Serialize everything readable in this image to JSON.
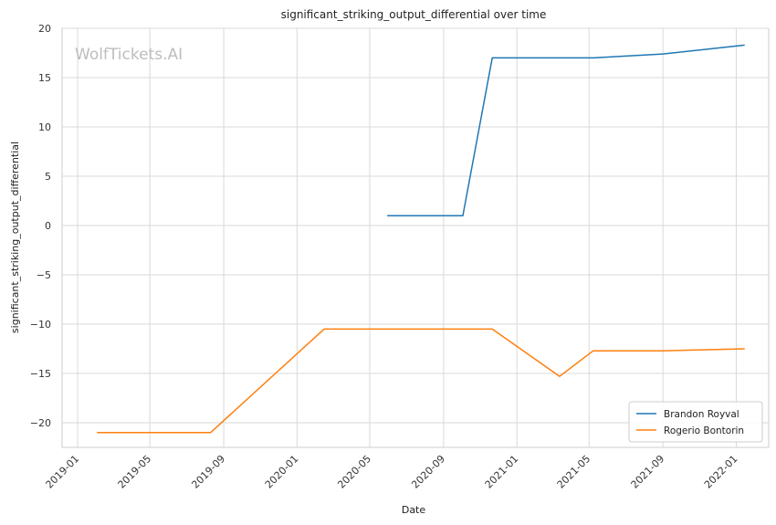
{
  "chart_data": {
    "type": "line",
    "title": "significant_striking_output_differential over time",
    "xlabel": "Date",
    "ylabel": "significant_striking_output_differential",
    "watermark": "WolfTickets.AI",
    "xlim": [
      "2018-12-06",
      "2022-02-24"
    ],
    "ylim": [
      -22.5,
      20
    ],
    "x_ticks": [
      "2019-01-01",
      "2019-05-01",
      "2019-09-01",
      "2020-01-01",
      "2020-05-01",
      "2020-09-01",
      "2021-01-01",
      "2021-05-01",
      "2021-09-01",
      "2022-01-01"
    ],
    "x_tick_labels": [
      "2019-01",
      "2019-05",
      "2019-09",
      "2020-01",
      "2020-05",
      "2020-09",
      "2021-01",
      "2021-05",
      "2021-09",
      "2022-01"
    ],
    "y_ticks": [
      20,
      15,
      10,
      5,
      0,
      -5,
      -10,
      -15,
      -20
    ],
    "y_tick_labels": [
      "20",
      "15",
      "10",
      "5",
      "0",
      "−5",
      "−10",
      "−15",
      "−20"
    ],
    "grid": true,
    "legend_position": "bottom-right",
    "series": [
      {
        "name": "Brandon Royval",
        "color": "#1f77b4",
        "x": [
          "2020-05-30",
          "2020-10-03",
          "2020-11-21",
          "2021-05-08",
          "2021-09-01",
          "2022-01-15"
        ],
        "y": [
          1.0,
          1.0,
          17.0,
          17.0,
          17.4,
          18.3
        ]
      },
      {
        "name": "Rogerio Bontorin",
        "color": "#ff7f0e",
        "x": [
          "2019-02-02",
          "2019-08-10",
          "2020-02-15",
          "2020-07-25",
          "2020-11-21",
          "2021-03-13",
          "2021-05-08",
          "2021-09-01",
          "2022-01-15"
        ],
        "y": [
          -21.0,
          -21.0,
          -10.5,
          -10.5,
          -10.5,
          -15.3,
          -12.7,
          -12.7,
          -12.5
        ]
      }
    ]
  }
}
